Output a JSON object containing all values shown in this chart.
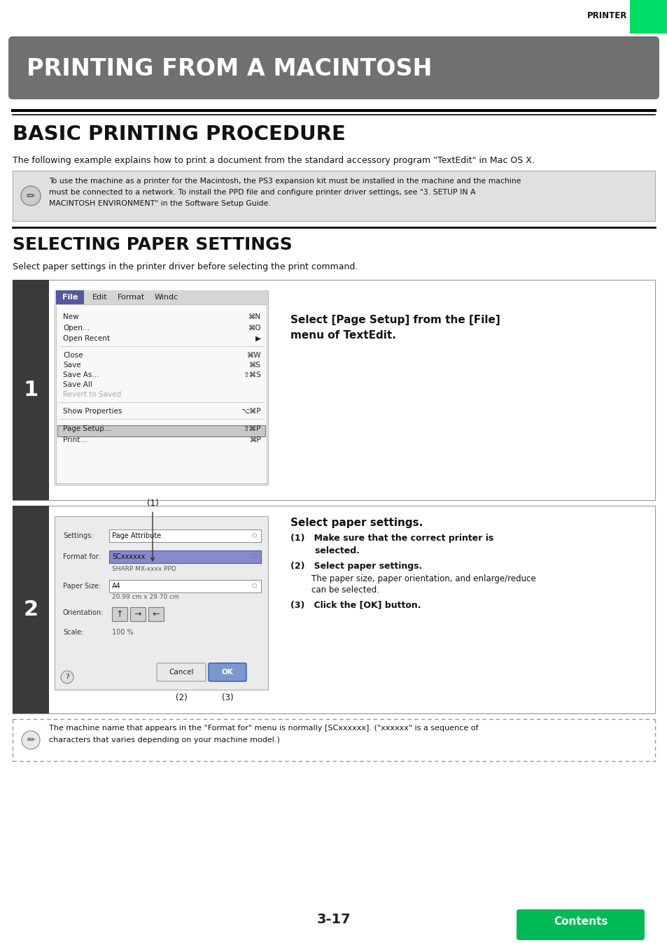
{
  "page_bg": "#ffffff",
  "header_green_color": "#00dd66",
  "header_text": "PRINTER",
  "title_banner_text": "PRINTING FROM A MACINTOSH",
  "title_banner_bg": "#707070",
  "title_banner_text_color": "#ffffff",
  "section1_title": "BASIC PRINTING PROCEDURE",
  "section1_body": "The following example explains how to print a document from the standard accessory program \"TextEdit\" in Mac OS X.",
  "note_bg": "#e0e0e0",
  "note_text1": "To use the machine as a printer for the Macintosh, the PS3 expansion kit must be installed in the machine and the machine",
  "note_text2": "must be connected to a network. To install the PPD file and configure printer driver settings, see \"3. SETUP IN A",
  "note_text3": "MACINTOSH ENVIRONMENT\" in the Software Setup Guide.",
  "section2_title": "SELECTING PAPER SETTINGS",
  "section2_body": "Select paper settings in the printer driver before selecting the print command.",
  "step1_number": "1",
  "step1_instruction_line1": "Select [Page Setup] from the [File]",
  "step1_instruction_line2": "menu of TextEdit.",
  "step2_number": "2",
  "step2_instruction_title": "Select paper settings.",
  "step2_line1a": "(1)   Make sure that the correct printer is",
  "step2_line1b": "        selected.",
  "step2_line2": "(2)   Select paper settings.",
  "step2_line3a": "        The paper size, paper orientation, and enlarge/reduce",
  "step2_line3b": "        can be selected.",
  "step2_line4": "(3)   Click the [OK] button.",
  "note2_text1": "The machine name that appears in the \"Format for\" menu is normally [SCxxxxxx]. (\"xxxxxx\" is a sequence of",
  "note2_text2": "characters that varies depending on your machine model.)",
  "page_number": "3-17",
  "contents_btn_color": "#00bb55",
  "contents_btn_text": "Contents",
  "step_bar_color": "#3a3a3a"
}
